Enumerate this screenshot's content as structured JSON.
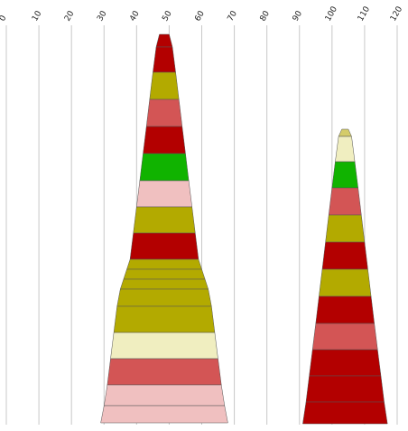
{
  "chart_data": {
    "type": "area",
    "x_ticks": [
      0,
      10,
      20,
      30,
      40,
      50,
      60,
      70,
      80,
      90,
      100,
      110,
      120
    ],
    "xlim": [
      0,
      120
    ],
    "grid": true,
    "colors": {
      "dark_red": "#b30000",
      "olive": "#b3aa00",
      "coral": "#d35555",
      "green": "#10b300",
      "light_pink": "#f0c0c0",
      "cream": "#f0eec0",
      "khaki": "#d4cc6a"
    },
    "stacks": [
      {
        "segments": [
          {
            "left_bottom": 46,
            "right_bottom": 51,
            "left_top": 47,
            "right_top": 50,
            "color": "dark_red"
          },
          {
            "left_bottom": 45,
            "right_bottom": 52,
            "left_top": 46,
            "right_top": 51,
            "color": "dark_red"
          },
          {
            "left_bottom": 44,
            "right_bottom": 53,
            "left_top": 45,
            "right_top": 52,
            "color": "olive"
          },
          {
            "left_bottom": 43,
            "right_bottom": 54,
            "left_top": 44,
            "right_top": 53,
            "color": "coral"
          },
          {
            "left_bottom": 42,
            "right_bottom": 55,
            "left_top": 43,
            "right_top": 54,
            "color": "dark_red"
          },
          {
            "left_bottom": 41,
            "right_bottom": 56,
            "left_top": 42,
            "right_top": 55,
            "color": "green"
          },
          {
            "left_bottom": 40,
            "right_bottom": 57,
            "left_top": 41,
            "right_top": 56,
            "color": "light_pink"
          },
          {
            "left_bottom": 39,
            "right_bottom": 58,
            "left_top": 40,
            "right_top": 57,
            "color": "olive"
          },
          {
            "left_bottom": 38,
            "right_bottom": 59,
            "left_top": 39,
            "right_top": 58,
            "color": "dark_red"
          },
          {
            "left_bottom": 37,
            "right_bottom": 60,
            "left_top": 38,
            "right_top": 59,
            "color": "olive"
          },
          {
            "left_bottom": 36,
            "right_bottom": 61,
            "left_top": 37,
            "right_top": 60,
            "color": "olive"
          },
          {
            "left_bottom": 35,
            "right_bottom": 62,
            "left_top": 36,
            "right_top": 61,
            "color": "olive"
          },
          {
            "left_bottom": 34,
            "right_bottom": 63,
            "left_top": 35,
            "right_top": 62,
            "color": "olive"
          },
          {
            "left_bottom": 33,
            "right_bottom": 64,
            "left_top": 34,
            "right_top": 63,
            "color": "olive"
          },
          {
            "left_bottom": 32,
            "right_bottom": 65,
            "left_top": 33,
            "right_top": 64,
            "color": "cream"
          },
          {
            "left_bottom": 31,
            "right_bottom": 66,
            "left_top": 32,
            "right_top": 65,
            "color": "coral"
          },
          {
            "left_bottom": 30,
            "right_bottom": 67,
            "left_top": 31,
            "right_top": 66,
            "color": "light_pink"
          },
          {
            "left_bottom": 29,
            "right_bottom": 68,
            "left_top": 30,
            "right_top": 67,
            "color": "light_pink"
          }
        ]
      },
      {
        "segments": [
          {
            "left_bottom": 102,
            "right_bottom": 106,
            "left_top": 103,
            "right_top": 105,
            "color": "khaki"
          },
          {
            "left_bottom": 101,
            "right_bottom": 107,
            "left_top": 102,
            "right_top": 106,
            "color": "cream"
          },
          {
            "left_bottom": 100,
            "right_bottom": 108,
            "left_top": 101,
            "right_top": 107,
            "color": "green"
          },
          {
            "left_bottom": 99,
            "right_bottom": 109,
            "left_top": 100,
            "right_top": 108,
            "color": "coral"
          },
          {
            "left_bottom": 98,
            "right_bottom": 110,
            "left_top": 99,
            "right_top": 109,
            "color": "olive"
          },
          {
            "left_bottom": 97,
            "right_bottom": 111,
            "left_top": 98,
            "right_top": 110,
            "color": "dark_red"
          },
          {
            "left_bottom": 96,
            "right_bottom": 112,
            "left_top": 97,
            "right_top": 111,
            "color": "olive"
          },
          {
            "left_bottom": 95,
            "right_bottom": 113,
            "left_top": 96,
            "right_top": 112,
            "color": "dark_red"
          },
          {
            "left_bottom": 94,
            "right_bottom": 114,
            "left_top": 95,
            "right_top": 113,
            "color": "coral"
          },
          {
            "left_bottom": 93,
            "right_bottom": 115,
            "left_top": 94,
            "right_top": 114,
            "color": "dark_red"
          },
          {
            "left_bottom": 92,
            "right_bottom": 116,
            "left_top": 93,
            "right_top": 115,
            "color": "dark_red"
          },
          {
            "left_bottom": 91,
            "right_bottom": 117,
            "left_top": 92,
            "right_top": 116,
            "color": "dark_red"
          }
        ]
      }
    ]
  }
}
